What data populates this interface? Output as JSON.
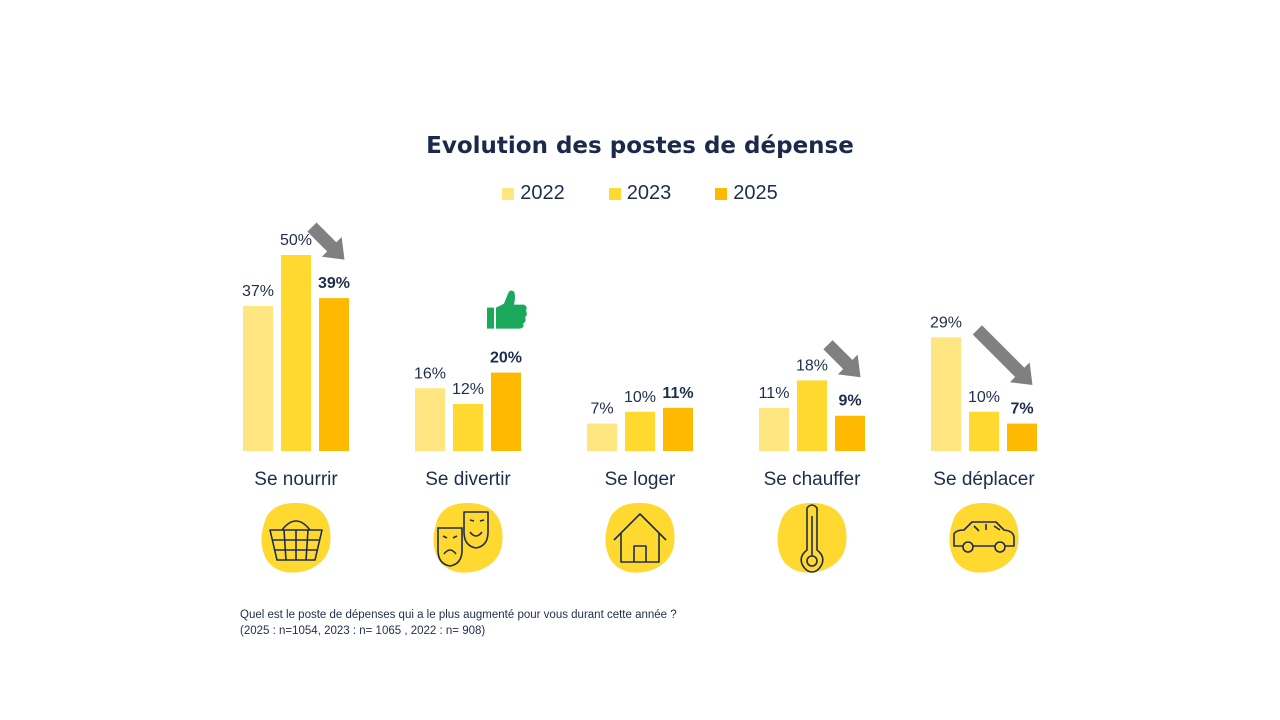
{
  "chart_data": {
    "type": "bar",
    "title": "Evolution des postes de dépense",
    "categories": [
      "Se nourrir",
      "Se divertir",
      "Se loger",
      "Se chauffer",
      "Se déplacer"
    ],
    "series": [
      {
        "name": "2022",
        "values": [
          37,
          16,
          7,
          11,
          29
        ],
        "labels": [
          "37%",
          "16%",
          "7%",
          "11%",
          "29%"
        ],
        "color": "#ffe680"
      },
      {
        "name": "2023",
        "values": [
          50,
          12,
          10,
          18,
          10
        ],
        "labels": [
          "50%",
          "12%",
          "10%",
          "18%",
          "10%"
        ],
        "color": "#ffd92f"
      },
      {
        "name": "2025",
        "values": [
          39,
          20,
          11,
          9,
          7
        ],
        "labels": [
          "39%",
          "20%",
          "11%",
          "9%",
          "7%"
        ],
        "color": "#ffb900"
      }
    ],
    "ylim": [
      0,
      50
    ],
    "grid": false,
    "legend_position": "top-center",
    "trend_markers": [
      "down",
      "up",
      "none",
      "down",
      "down"
    ],
    "category_icons": [
      "basket-icon",
      "theater-masks-icon",
      "house-icon",
      "thermometer-icon",
      "car-icon"
    ]
  },
  "colors": {
    "text": "#1f2d4d",
    "arrow": "#808080",
    "thumb": "#1aa85a",
    "blob": "#ffd92f"
  },
  "footnote": {
    "question": "Quel est le poste de dépenses qui a le plus augmenté pour vous durant cette année ?",
    "sample": "(2025 : n=1054, 2023 : n= 1065 , 2022 : n= 908)"
  }
}
